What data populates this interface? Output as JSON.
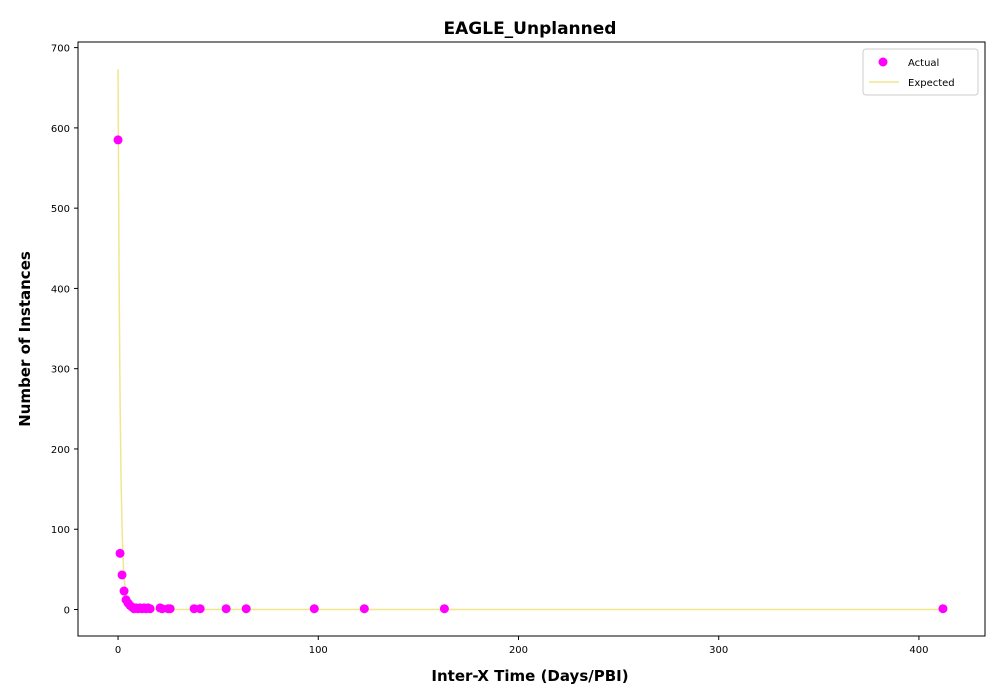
{
  "chart_data": {
    "type": "scatter",
    "title": "EAGLE_Unplanned",
    "xlabel": "Inter-X Time (Days/PBI)",
    "ylabel": "Number of Instances",
    "xlim": [
      -20,
      433
    ],
    "ylim": [
      -33,
      707
    ],
    "xticks": [
      0,
      100,
      200,
      300,
      400
    ],
    "yticks": [
      0,
      100,
      200,
      300,
      400,
      500,
      600,
      700
    ],
    "grid": false,
    "legend_position": "top-right",
    "series": [
      {
        "name": "Actual",
        "kind": "scatter",
        "color": "#ff00ff",
        "points": [
          [
            0,
            585
          ],
          [
            1,
            70
          ],
          [
            2,
            43
          ],
          [
            3,
            23
          ],
          [
            4,
            12
          ],
          [
            5,
            8
          ],
          [
            6,
            5
          ],
          [
            7,
            3
          ],
          [
            8,
            1
          ],
          [
            9,
            2
          ],
          [
            10,
            1
          ],
          [
            11,
            2
          ],
          [
            12,
            1
          ],
          [
            13,
            2
          ],
          [
            14,
            1
          ],
          [
            15,
            2
          ],
          [
            16,
            1
          ],
          [
            21,
            2
          ],
          [
            22,
            1
          ],
          [
            25,
            1
          ],
          [
            26,
            1
          ],
          [
            38,
            1
          ],
          [
            41,
            1
          ],
          [
            54,
            1
          ],
          [
            64,
            1
          ],
          [
            98,
            1
          ],
          [
            123,
            1
          ],
          [
            163,
            1
          ],
          [
            412,
            1
          ]
        ]
      },
      {
        "name": "Expected",
        "kind": "line",
        "color": "#f0e68c",
        "points": [
          [
            0,
            673
          ],
          [
            0.5,
            420
          ],
          [
            1,
            262
          ],
          [
            1.5,
            164
          ],
          [
            2,
            102
          ],
          [
            2.5,
            64
          ],
          [
            3,
            40
          ],
          [
            4,
            16
          ],
          [
            5,
            6
          ],
          [
            6,
            2.4
          ],
          [
            8,
            0.4
          ],
          [
            10,
            0.1
          ],
          [
            20,
            0
          ],
          [
            100,
            0
          ],
          [
            200,
            0
          ],
          [
            300,
            0
          ],
          [
            412,
            0
          ]
        ]
      }
    ]
  }
}
